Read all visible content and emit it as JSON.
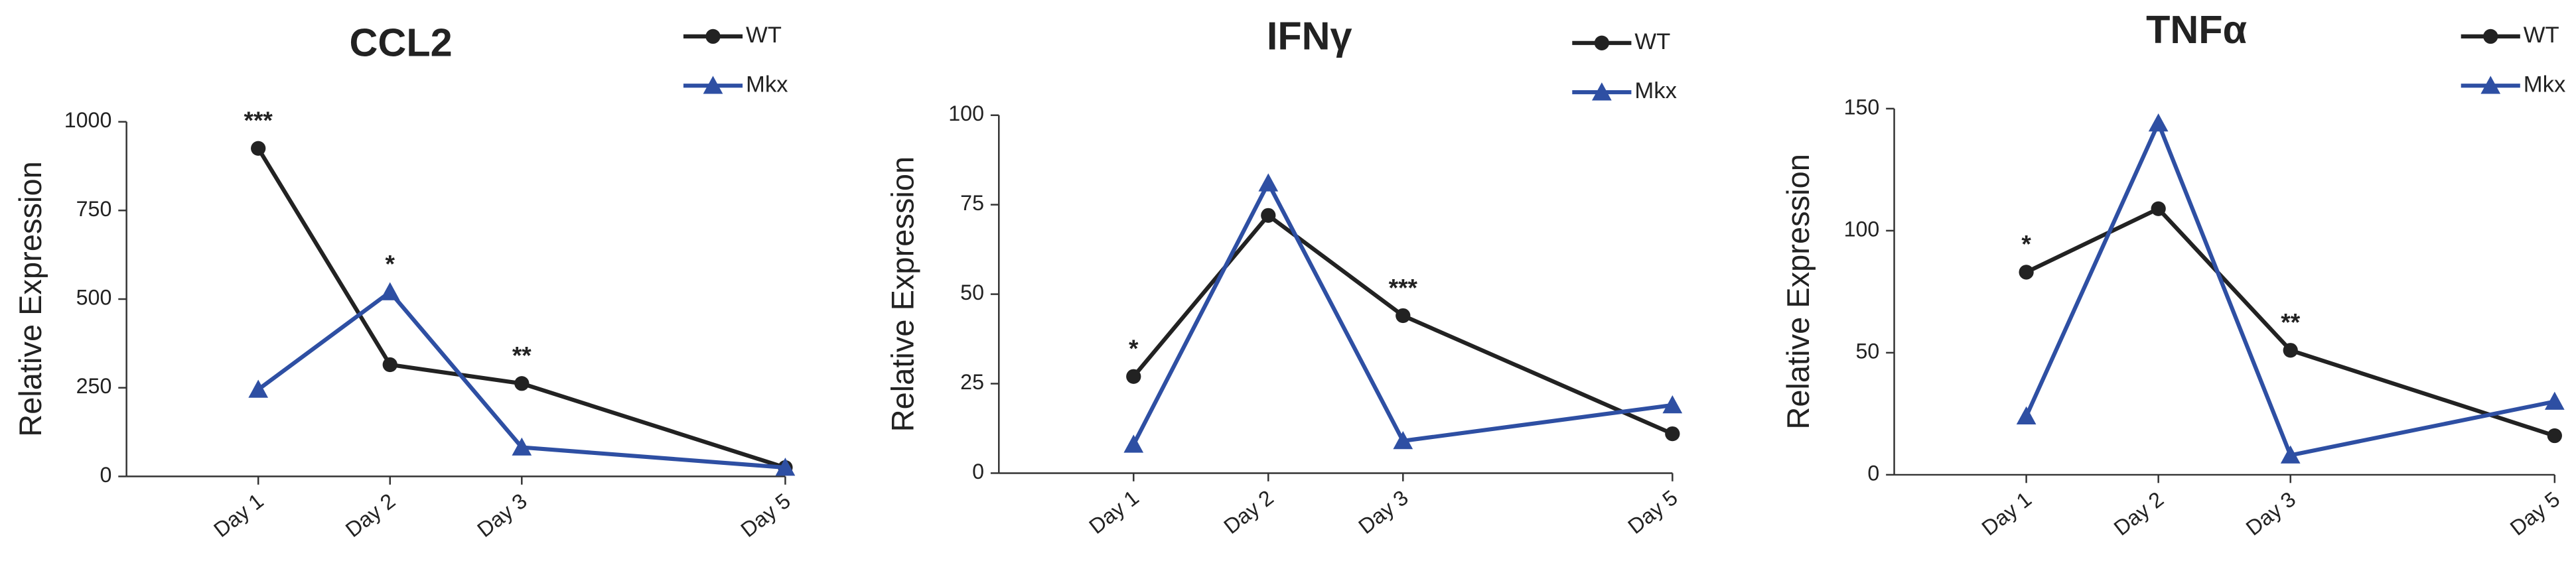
{
  "chart_data": [
    {
      "type": "line",
      "title": "CCL2",
      "y_label": "Relative Expression",
      "x": [
        1,
        2,
        3,
        5
      ],
      "xticks": [
        {
          "value": 1,
          "label": "Day 1"
        },
        {
          "value": 2,
          "label": "Day 2"
        },
        {
          "value": 3,
          "label": "Day 3"
        },
        {
          "value": 5,
          "label": "Day 5"
        }
      ],
      "xlim": [
        0,
        5
      ],
      "ylim": [
        0,
        1000
      ],
      "yticks": [
        0,
        250,
        500,
        750,
        1000
      ],
      "series": [
        {
          "name": "WT",
          "color": "#222222",
          "marker": "circle",
          "values": [
            925,
            315,
            262,
            25
          ]
        },
        {
          "name": "Mkx",
          "color": "#2e4fa3",
          "marker": "triangle",
          "values": [
            245,
            520,
            82,
            25
          ]
        }
      ],
      "annotations": [
        {
          "x": 1,
          "text": "***"
        },
        {
          "x": 2,
          "text": "*"
        },
        {
          "x": 3,
          "text": "**"
        }
      ]
    },
    {
      "type": "line",
      "title": "IFNγ",
      "y_label": "Relative Expression",
      "x": [
        1,
        2,
        3,
        5
      ],
      "xticks": [
        {
          "value": 1,
          "label": "Day 1"
        },
        {
          "value": 2,
          "label": "Day 2"
        },
        {
          "value": 3,
          "label": "Day 3"
        },
        {
          "value": 5,
          "label": "Day 5"
        }
      ],
      "xlim": [
        0,
        5
      ],
      "ylim": [
        0,
        100
      ],
      "yticks": [
        0,
        25,
        50,
        75,
        100
      ],
      "series": [
        {
          "name": "WT",
          "color": "#222222",
          "marker": "circle",
          "values": [
            27,
            72,
            44,
            11
          ]
        },
        {
          "name": "Mkx",
          "color": "#2e4fa3",
          "marker": "triangle",
          "values": [
            8,
            81,
            9,
            19
          ]
        }
      ],
      "annotations": [
        {
          "x": 1,
          "text": "*"
        },
        {
          "x": 3,
          "text": "***"
        }
      ]
    },
    {
      "type": "line",
      "title": "TNFα",
      "y_label": "Relative Expression",
      "x": [
        1,
        2,
        3,
        5
      ],
      "xticks": [
        {
          "value": 1,
          "label": "Day 1"
        },
        {
          "value": 2,
          "label": "Day 2"
        },
        {
          "value": 3,
          "label": "Day 3"
        },
        {
          "value": 5,
          "label": "Day 5"
        }
      ],
      "xlim": [
        0,
        5
      ],
      "ylim": [
        0,
        150
      ],
      "yticks": [
        0,
        50,
        100,
        150
      ],
      "series": [
        {
          "name": "WT",
          "color": "#222222",
          "marker": "circle",
          "values": [
            83,
            109,
            51,
            16
          ]
        },
        {
          "name": "Mkx",
          "color": "#2e4fa3",
          "marker": "triangle",
          "values": [
            24,
            144,
            8,
            30
          ]
        }
      ],
      "annotations": [
        {
          "x": 1,
          "text": "*"
        },
        {
          "x": 3,
          "text": "**"
        }
      ]
    }
  ]
}
